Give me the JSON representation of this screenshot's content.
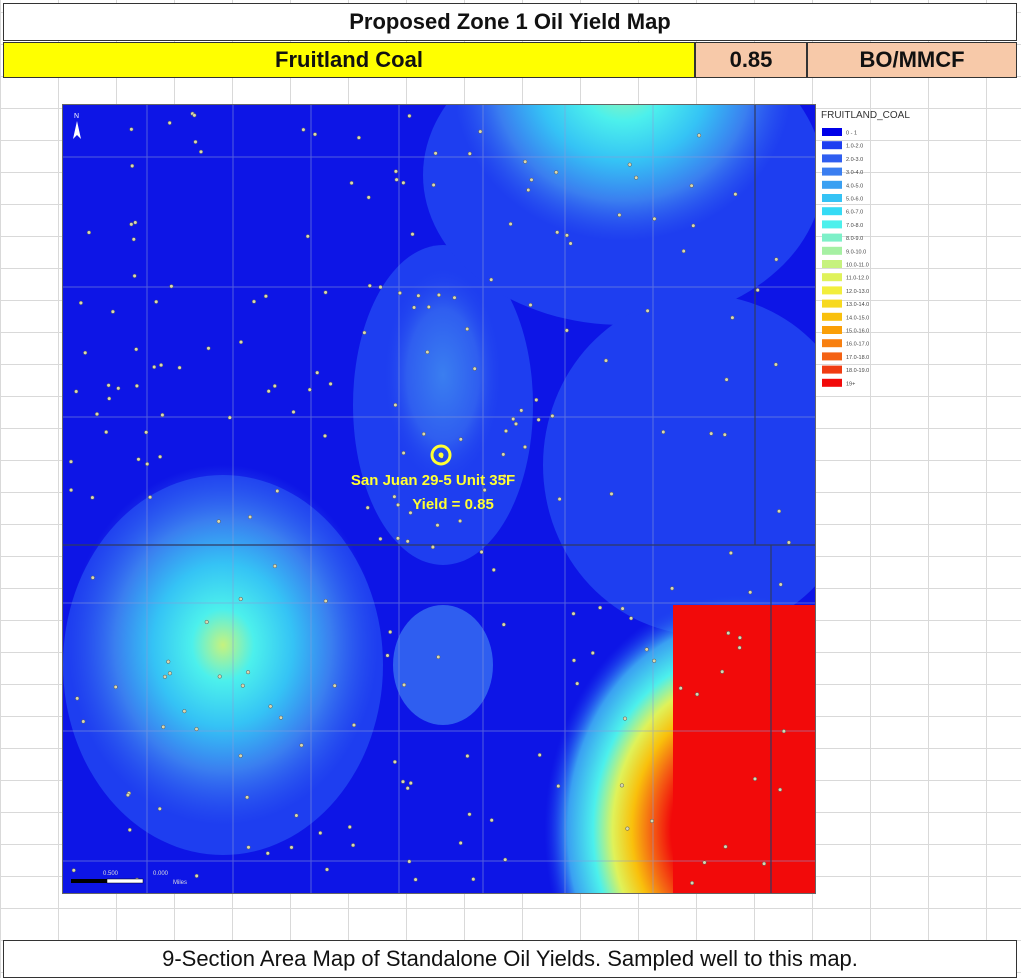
{
  "header": {
    "title": "Proposed Zone 1 Oil Yield Map",
    "formation": "Fruitland Coal",
    "value": "0.85",
    "units": "BO/MMCF"
  },
  "map": {
    "legend_title": "FRUITLAND_COAL",
    "legend": [
      {
        "label": "0 - 1",
        "color": "#0000e8"
      },
      {
        "label": "1.0-2.0",
        "color": "#1e3ef0"
      },
      {
        "label": "2.0-3.0",
        "color": "#2f5ef0"
      },
      {
        "label": "3.0-4.0",
        "color": "#3a7ef0"
      },
      {
        "label": "4.0-5.0",
        "color": "#3aa0f2"
      },
      {
        "label": "5.0-6.0",
        "color": "#35c3f5"
      },
      {
        "label": "6.0-7.0",
        "color": "#35dbf5"
      },
      {
        "label": "7.0-8.0",
        "color": "#4cf0ec"
      },
      {
        "label": "8.0-9.0",
        "color": "#7df0c8"
      },
      {
        "label": "9.0-10.0",
        "color": "#a6f0a3"
      },
      {
        "label": "10.0-11.0",
        "color": "#c6f27e"
      },
      {
        "label": "11.0-12.0",
        "color": "#dff25a"
      },
      {
        "label": "12.0-13.0",
        "color": "#f2ee3c"
      },
      {
        "label": "13.0-14.0",
        "color": "#f7d91f"
      },
      {
        "label": "14.0-15.0",
        "color": "#f9c00c"
      },
      {
        "label": "15.0-16.0",
        "color": "#fa9f08"
      },
      {
        "label": "16.0-17.0",
        "color": "#f88010"
      },
      {
        "label": "17.0-18.0",
        "color": "#f46214"
      },
      {
        "label": "18.0-19.0",
        "color": "#f03c12"
      },
      {
        "label": "19+",
        "color": "#f20a0a"
      }
    ],
    "well_name": "San Juan 29-5 Unit 35F",
    "well_yield": "Yield = 0.85",
    "north_arrow": "N",
    "scale_label_1": "0.500",
    "scale_label_2": "0.000",
    "scale_units": "Miles",
    "colors": {
      "base": "#0d15e6",
      "highlight": "#ffff33"
    }
  },
  "footer": {
    "caption": "9-Section Area Map of Standalone Oil Yields. Sampled well to this map."
  }
}
